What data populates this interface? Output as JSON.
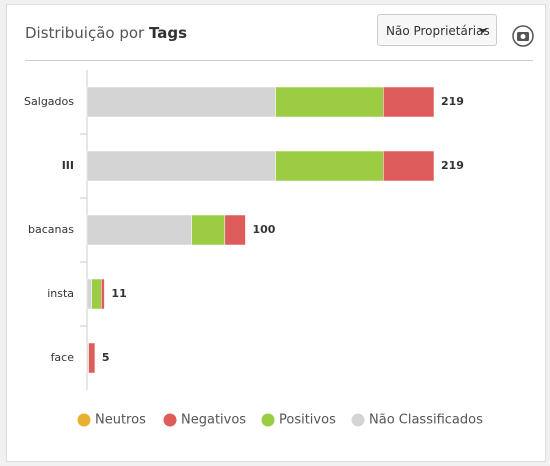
{
  "header": {
    "title": "Distribuição por",
    "title_bold": "Tags",
    "dropdown": "Não Proprietárias"
  },
  "chart_data": {
    "type": "bar",
    "orientation": "horizontal",
    "stacked": true,
    "categories": [
      "Salgados",
      "III",
      "bacanas",
      "insta",
      "face"
    ],
    "series": [
      {
        "name": "Neutros",
        "color": "#e8b030",
        "values": [
          0,
          0,
          0,
          0,
          0
        ]
      },
      {
        "name": "Negativos",
        "color": "#df5c5c",
        "values": [
          32,
          32,
          13,
          2,
          4
        ]
      },
      {
        "name": "Positivos",
        "color": "#9ccc44",
        "values": [
          68,
          68,
          21,
          6,
          0
        ]
      },
      {
        "name": "Não Classificados",
        "color": "#d4d4d4",
        "values": [
          119,
          119,
          66,
          3,
          1
        ]
      }
    ],
    "totals": [
      219,
      219,
      100,
      11,
      5
    ]
  }
}
